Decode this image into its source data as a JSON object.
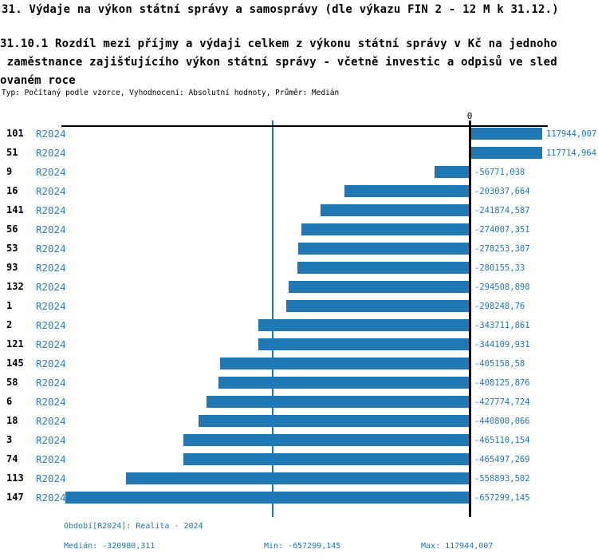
{
  "header": {
    "title": "31. Výdaje na výkon státní správy a samosprávy (dle výkazu FIN 2 - 12 M k 31.12.)",
    "subtitle": "31.10.1 Rozdíl mezi příjmy a výdaji celkem z výkonu státní správy v Kč na jednoho\n zaměstnance zajišťujícího výkon státní správy - včetně investic a odpisů ve sled\novaném roce",
    "meta": "Typ: Počítaný podle vzorce, Vyhodnocení: Absolutní hodnoty, Průměr: Medián"
  },
  "chart_data": {
    "type": "bar",
    "orientation": "horizontal",
    "title": "31.10.1 Rozdíl mezi příjmy a výdaji celkem z výkonu státní správy v Kč na jednoho zaměstnance zajišťujícího výkon státní správy - včetně investic a odpisů ve sledovaném roce",
    "series_name": "R2024",
    "zero_tick_label": "0",
    "bar_color": "#1f77b4",
    "median_line_color": "#1f77b4",
    "median_value": -320980.311,
    "xlim": [
      -657299.145,
      117944.007
    ],
    "categories": [
      "101",
      "51",
      "9",
      "16",
      "141",
      "56",
      "53",
      "93",
      "132",
      "1",
      "2",
      "121",
      "145",
      "58",
      "6",
      "18",
      "3",
      "74",
      "113",
      "147"
    ],
    "rows": [
      {
        "id": "101",
        "period": "R2024",
        "value": 117944.007,
        "value_label": "117944,007"
      },
      {
        "id": "51",
        "period": "R2024",
        "value": 117714.964,
        "value_label": "117714,964"
      },
      {
        "id": "9",
        "period": "R2024",
        "value": -56771.038,
        "value_label": "-56771,038"
      },
      {
        "id": "16",
        "period": "R2024",
        "value": -203037.664,
        "value_label": "-203037,664"
      },
      {
        "id": "141",
        "period": "R2024",
        "value": -241874.587,
        "value_label": "-241874,587"
      },
      {
        "id": "56",
        "period": "R2024",
        "value": -274007.351,
        "value_label": "-274007,351"
      },
      {
        "id": "53",
        "period": "R2024",
        "value": -278253.307,
        "value_label": "-278253,307"
      },
      {
        "id": "93",
        "period": "R2024",
        "value": -280155.33,
        "value_label": "-280155,33"
      },
      {
        "id": "132",
        "period": "R2024",
        "value": -294508.898,
        "value_label": "-294508,898"
      },
      {
        "id": "1",
        "period": "R2024",
        "value": -298248.76,
        "value_label": "-298248,76"
      },
      {
        "id": "2",
        "period": "R2024",
        "value": -343711.861,
        "value_label": "-343711,861"
      },
      {
        "id": "121",
        "period": "R2024",
        "value": -344109.931,
        "value_label": "-344109,931"
      },
      {
        "id": "145",
        "period": "R2024",
        "value": -405158.58,
        "value_label": "-405158,58"
      },
      {
        "id": "58",
        "period": "R2024",
        "value": -408125.876,
        "value_label": "-408125,876"
      },
      {
        "id": "6",
        "period": "R2024",
        "value": -427774.724,
        "value_label": "-427774,724"
      },
      {
        "id": "18",
        "period": "R2024",
        "value": -440800.066,
        "value_label": "-440800,066"
      },
      {
        "id": "3",
        "period": "R2024",
        "value": -465110.154,
        "value_label": "-465110,154"
      },
      {
        "id": "74",
        "period": "R2024",
        "value": -465497.269,
        "value_label": "-465497,269"
      },
      {
        "id": "113",
        "period": "R2024",
        "value": -558893.502,
        "value_label": "-558893,502"
      },
      {
        "id": "147",
        "period": "R2024",
        "value": -657299.145,
        "value_label": "-657299,145"
      }
    ]
  },
  "footer": {
    "period_label": "Období[R2024]: Realita - 2024",
    "median_label": "Medián: -320980,311",
    "min_label": "Min: -657299,145",
    "max_label": "Max: 117944,007"
  }
}
